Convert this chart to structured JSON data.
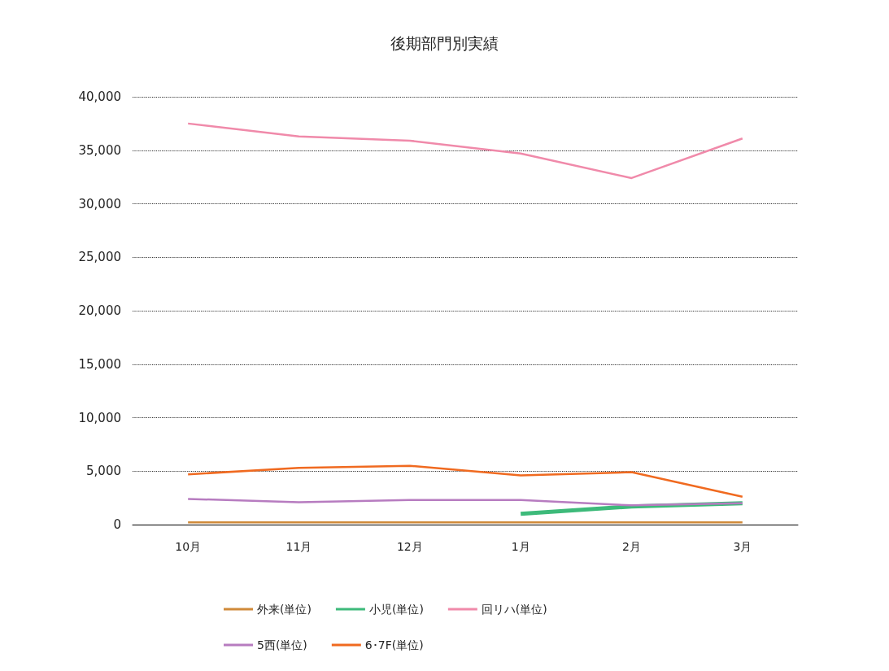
{
  "chart_data": {
    "type": "line",
    "title": "後期部門別実績",
    "categories": [
      "10月",
      "11月",
      "12月",
      "1月",
      "2月",
      "3月"
    ],
    "series": [
      {
        "name": "外来(単位)",
        "color": "#d08a3a",
        "values": [
          200,
          200,
          200,
          200,
          200,
          200
        ]
      },
      {
        "name": "小児(単位)",
        "color": "#3dba7a",
        "values": [
          null,
          null,
          null,
          1000,
          1700,
          2000
        ]
      },
      {
        "name": "回リハ(単位)",
        "color": "#f08aaa",
        "values": [
          37500,
          36300,
          35900,
          34700,
          32400,
          36100
        ]
      },
      {
        "name": "5西(単位)",
        "color": "#b77cc0",
        "values": [
          2400,
          2100,
          2300,
          2300,
          1800,
          2000
        ]
      },
      {
        "name": "6･7F(単位)",
        "color": "#f06a20",
        "values": [
          4700,
          5300,
          5500,
          4600,
          4900,
          2600
        ]
      }
    ],
    "ylim": [
      0,
      40000
    ],
    "yticks": [
      0,
      {
        "value": 5000,
        "label": "5,000"
      },
      {
        "value": 10000,
        "label": "10,000"
      },
      {
        "value": 15000,
        "label": "15,000"
      },
      {
        "value": 20000,
        "label": "20,000"
      },
      {
        "value": 25000,
        "label": "25,000"
      },
      {
        "value": 30000,
        "label": "30,000"
      },
      {
        "value": 35000,
        "label": "35,000"
      },
      {
        "value": 40000,
        "label": "40,000"
      }
    ],
    "grid": "y",
    "legend": "bottom",
    "marker": "none",
    "line_style": "solid"
  }
}
